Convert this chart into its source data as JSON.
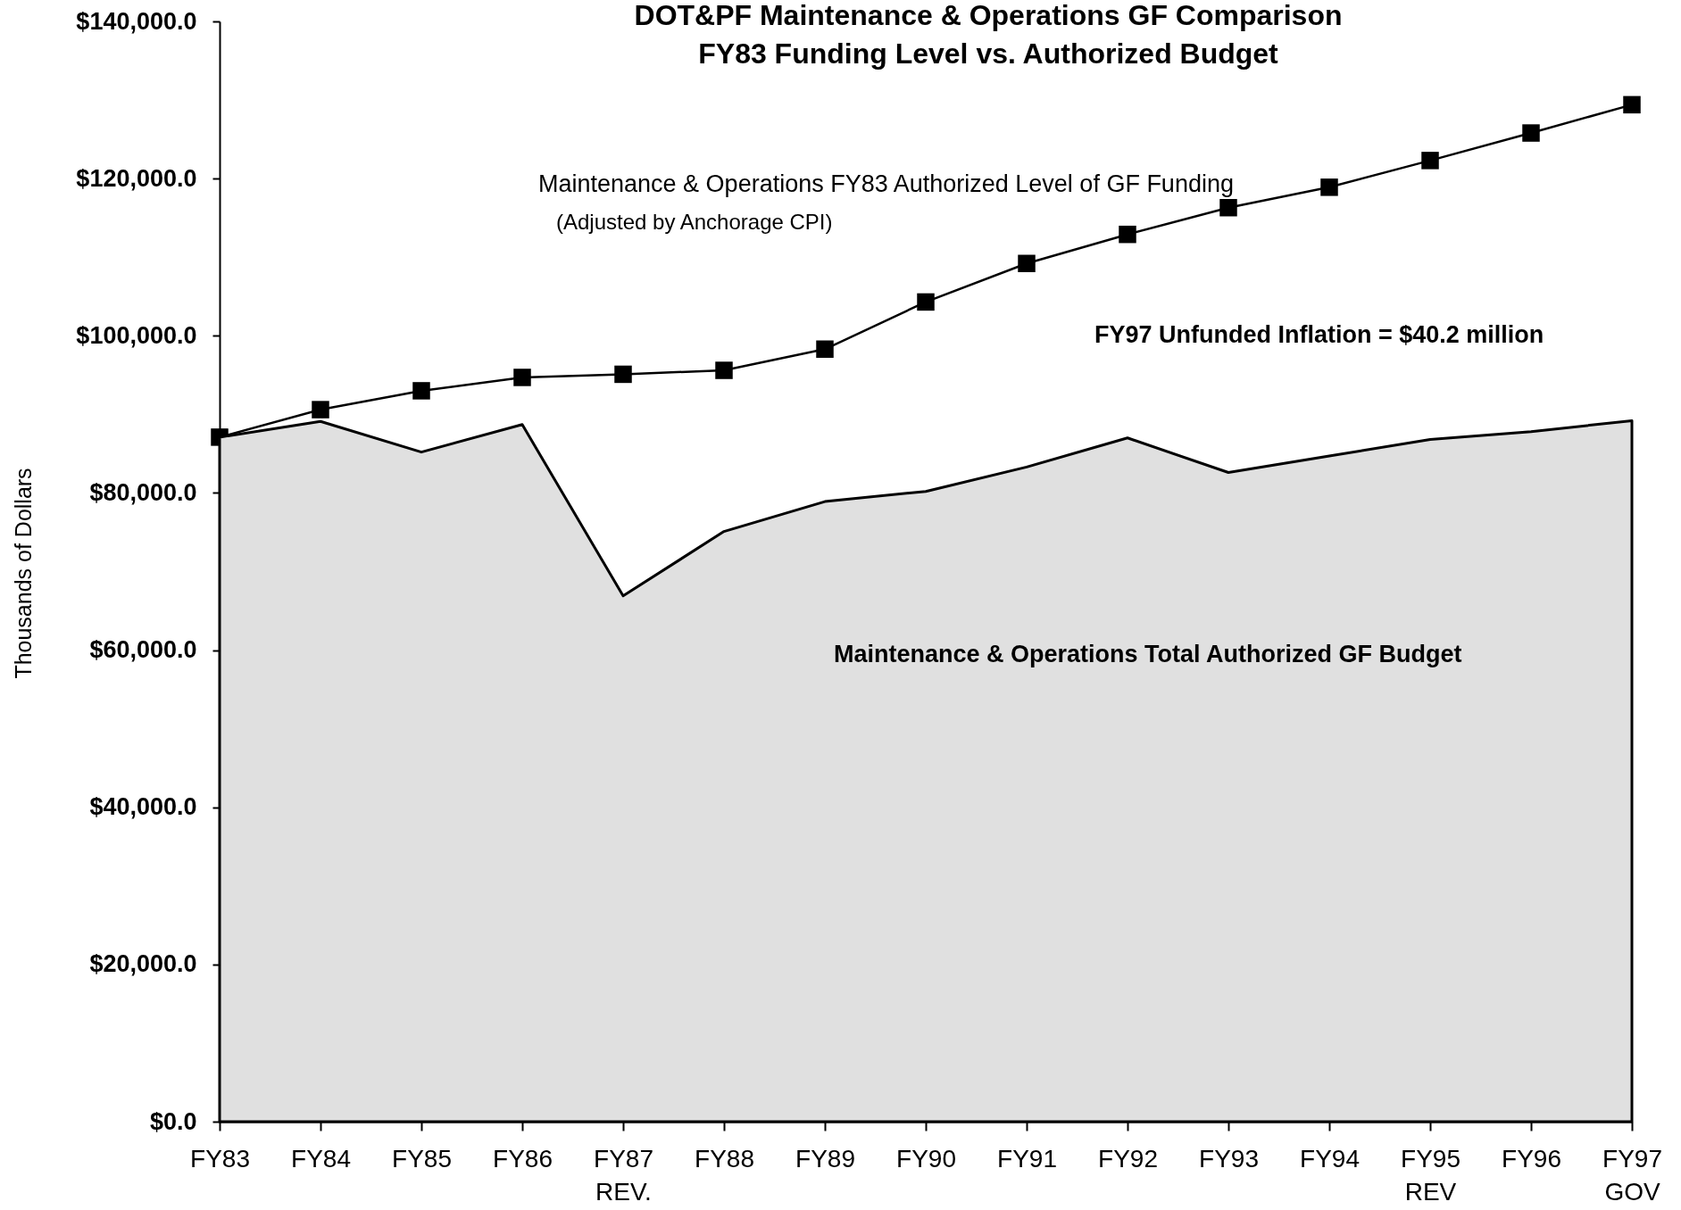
{
  "chart_data": {
    "type": "area",
    "title": "DOT&PF Maintenance & Operations GF Comparison",
    "subtitle": "FY83 Funding Level vs. Authorized Budget",
    "ylabel": "Thousands of Dollars",
    "categories": [
      "FY83",
      "FY84",
      "FY85",
      "FY86",
      "FY87 REV.",
      "FY88",
      "FY89",
      "FY90",
      "FY91",
      "FY92",
      "FY93",
      "FY94",
      "FY95 REV",
      "FY96",
      "FY97 GOV"
    ],
    "series": [
      {
        "name": "Maintenance & Operations Total Authorized GF Budget",
        "color": "#e0e0e0",
        "values": [
          87100,
          89100,
          85200,
          88700,
          66900,
          75100,
          78900,
          80200,
          83300,
          87000,
          82600,
          84700,
          86800,
          87800,
          89200
        ]
      },
      {
        "name": "Maintenance & Operations FY83 Authorized Level of GF Funding",
        "type": "line",
        "color": "#000000",
        "marker": "square",
        "values": [
          87100,
          90600,
          93000,
          94700,
          95100,
          95600,
          98300,
          104300,
          109200,
          112900,
          116300,
          118900,
          122300,
          125800,
          129400
        ]
      }
    ],
    "ylim": [
      0,
      140000
    ],
    "yticks": [
      {
        "value": 0,
        "label": "$0.0"
      },
      {
        "value": 20000,
        "label": "$20,000.0"
      },
      {
        "value": 40000,
        "label": "$40,000.0"
      },
      {
        "value": 60000,
        "label": "$60,000.0"
      },
      {
        "value": 80000,
        "label": "$80,000.0"
      },
      {
        "value": 100000,
        "label": "$100,000.0"
      },
      {
        "value": 120000,
        "label": "$120,000.0"
      },
      {
        "value": 140000,
        "label": "$140,000.0"
      }
    ],
    "annotations": [
      "(Adjusted by Anchorage CPI)",
      "FY97 Unfunded Inflation = $40.2 million"
    ],
    "grid": false,
    "legend": false
  }
}
